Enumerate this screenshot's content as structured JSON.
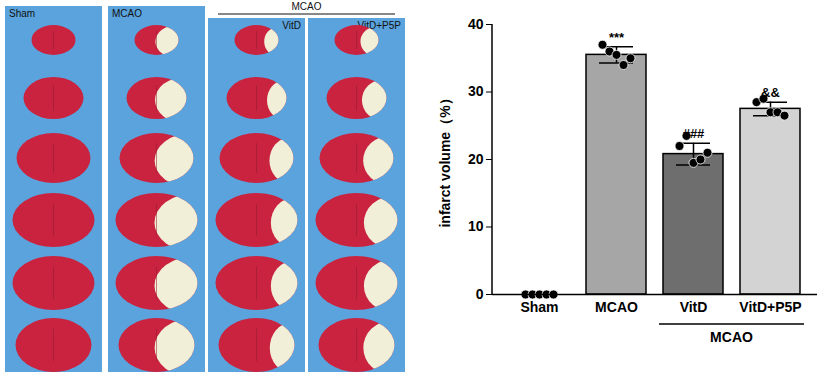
{
  "panels": {
    "labels": [
      "Sham",
      "MCAO",
      "VitD",
      "VitD+P5P"
    ],
    "group_label": "MCAO",
    "group_members": [
      "VitD",
      "VitD+P5P"
    ]
  },
  "chart_data": {
    "type": "bar",
    "categories": [
      "Sham",
      "MCAO",
      "VitD",
      "VitD+P5P"
    ],
    "values": [
      0,
      35.5,
      20.8,
      27.5
    ],
    "errors": [
      0,
      1.2,
      1.6,
      1.0
    ],
    "points": [
      [
        0,
        0,
        0,
        0,
        0
      ],
      [
        37,
        36,
        35.5,
        34,
        35
      ],
      [
        22,
        23.5,
        19.5,
        20,
        21
      ],
      [
        28.5,
        29,
        27,
        27,
        26.5
      ]
    ],
    "colors": [
      "#ffffff",
      "#a6a6a6",
      "#6e6e6e",
      "#d3d3d3"
    ],
    "annotations": [
      {
        "category": "MCAO",
        "text": "***"
      },
      {
        "category": "VitD",
        "text": "###"
      },
      {
        "category": "VitD+P5P",
        "text": "&&"
      }
    ],
    "group_label": {
      "text": "MCAO",
      "categories": [
        "VitD",
        "VitD+P5P"
      ]
    },
    "ylabel": "infarct volume（%）",
    "ylim": [
      0,
      40
    ],
    "yticks": [
      0,
      10,
      20,
      30,
      40
    ],
    "grid": false,
    "data_labels": false
  }
}
